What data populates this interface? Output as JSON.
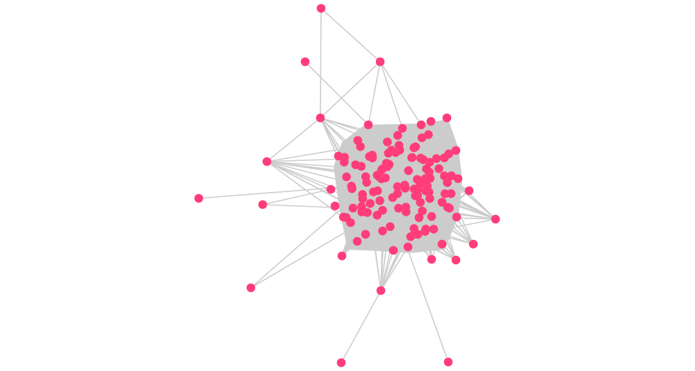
{
  "graph": {
    "node_color": "#ff3d7a",
    "edge_color": "#cccccc",
    "background": "#ffffff"
  }
}
